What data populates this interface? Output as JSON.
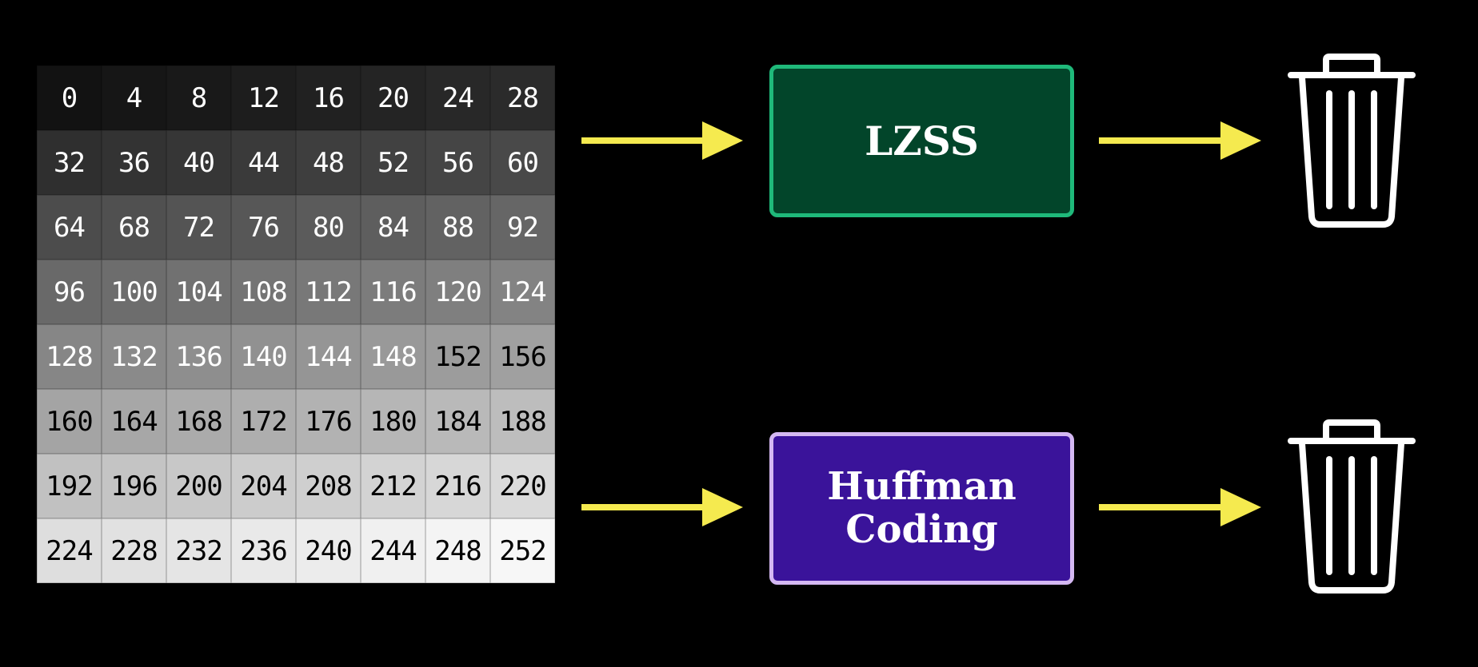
{
  "grid": {
    "rows": [
      [
        0,
        4,
        8,
        12,
        16,
        20,
        24,
        28
      ],
      [
        32,
        36,
        40,
        44,
        48,
        52,
        56,
        60
      ],
      [
        64,
        68,
        72,
        76,
        80,
        84,
        88,
        92
      ],
      [
        96,
        100,
        104,
        108,
        112,
        116,
        120,
        124
      ],
      [
        128,
        132,
        136,
        140,
        144,
        148,
        152,
        156
      ],
      [
        160,
        164,
        168,
        172,
        176,
        180,
        184,
        188
      ],
      [
        192,
        196,
        200,
        204,
        208,
        212,
        216,
        220
      ],
      [
        224,
        228,
        232,
        236,
        240,
        244,
        248,
        252
      ]
    ]
  },
  "pipelines": [
    {
      "label_lines": [
        "LZSS"
      ],
      "fill": "#02452a",
      "border": "#1fb97a",
      "output_icon": "trash-can-icon"
    },
    {
      "label_lines": [
        "Huffman",
        "Coding"
      ],
      "fill": "#3a139a",
      "border": "#d4b8f2",
      "output_icon": "trash-can-icon"
    }
  ],
  "colors": {
    "background": "#000000",
    "arrow": "#f5ea4f",
    "icon": "#ffffff",
    "text": "#ffffff"
  }
}
